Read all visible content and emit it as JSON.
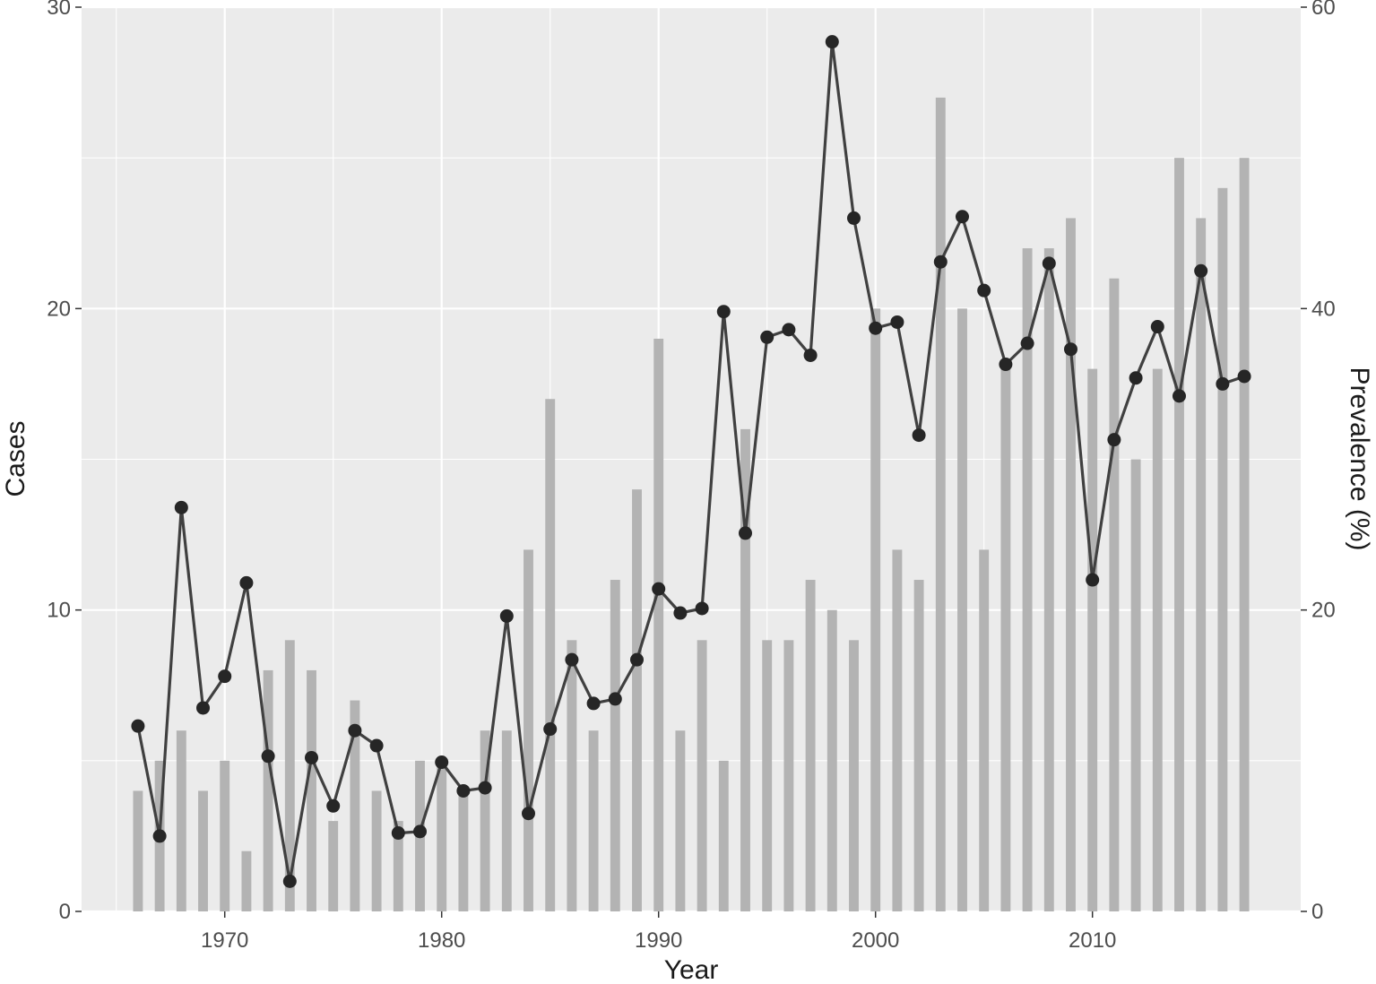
{
  "chart_data": {
    "type": "bar+line",
    "xlabel": "Year",
    "ylabel_left": "Cases",
    "ylabel_right": "Prevalence (%)",
    "x_ticks": [
      1970,
      1980,
      1990,
      2000,
      2010
    ],
    "y_left_ticks": [
      0,
      10,
      20,
      30
    ],
    "y_right_ticks": [
      0,
      20,
      40,
      60
    ],
    "xlim": [
      1963.4,
      2019.6
    ],
    "ylim_left": [
      0,
      30
    ],
    "ylim_right": [
      0,
      60
    ],
    "grid": true,
    "colors": {
      "panel_background": "#ebebeb",
      "grid": "#ffffff",
      "bars": "#b3b3b3",
      "line": "#404040",
      "points": "#262626"
    },
    "series": [
      {
        "type": "bar",
        "axis": "left",
        "x": [
          1966,
          1967,
          1968,
          1969,
          1970,
          1971,
          1972,
          1973,
          1974,
          1975,
          1976,
          1977,
          1978,
          1979,
          1980,
          1981,
          1982,
          1983,
          1984,
          1985,
          1986,
          1987,
          1988,
          1989,
          1990,
          1991,
          1992,
          1993,
          1994,
          1995,
          1996,
          1997,
          1998,
          1999,
          2000,
          2001,
          2002,
          2003,
          2004,
          2005,
          2006,
          2007,
          2008,
          2009,
          2010,
          2011,
          2012,
          2013,
          2014,
          2015,
          2016,
          2017
        ],
        "values": [
          4,
          5,
          6,
          4,
          5,
          2,
          8,
          9,
          8,
          3,
          7,
          4,
          3,
          5,
          5,
          4,
          6,
          6,
          12,
          17,
          9,
          6,
          11,
          14,
          19,
          6,
          9,
          5,
          16,
          9,
          9,
          11,
          10,
          9,
          20,
          12,
          11,
          27,
          20,
          12,
          18,
          22,
          22,
          23,
          18,
          21,
          15,
          18,
          25,
          23,
          24,
          25
        ]
      },
      {
        "type": "line",
        "axis": "right",
        "x": [
          1966,
          1967,
          1968,
          1969,
          1970,
          1971,
          1972,
          1973,
          1974,
          1975,
          1976,
          1977,
          1978,
          1979,
          1980,
          1981,
          1982,
          1983,
          1984,
          1985,
          1986,
          1987,
          1988,
          1989,
          1990,
          1991,
          1992,
          1993,
          1994,
          1995,
          1996,
          1997,
          1998,
          1999,
          2000,
          2001,
          2002,
          2003,
          2004,
          2005,
          2006,
          2007,
          2008,
          2009,
          2010,
          2011,
          2012,
          2013,
          2014,
          2015,
          2016,
          2017
        ],
        "values": [
          12.3,
          5.0,
          26.8,
          13.5,
          15.6,
          21.8,
          10.3,
          2.0,
          10.2,
          7.0,
          12.0,
          11.0,
          5.2,
          5.3,
          9.9,
          8.0,
          8.2,
          19.6,
          6.5,
          12.1,
          16.7,
          13.8,
          14.1,
          16.7,
          21.4,
          19.8,
          20.1,
          39.8,
          25.1,
          38.1,
          38.6,
          36.9,
          57.7,
          46.0,
          38.7,
          39.1,
          31.6,
          43.1,
          46.1,
          41.2,
          36.3,
          37.7,
          43.0,
          37.3,
          22.0,
          31.3,
          35.4,
          38.8,
          34.2,
          42.5,
          35.0,
          35.5
        ]
      }
    ]
  }
}
